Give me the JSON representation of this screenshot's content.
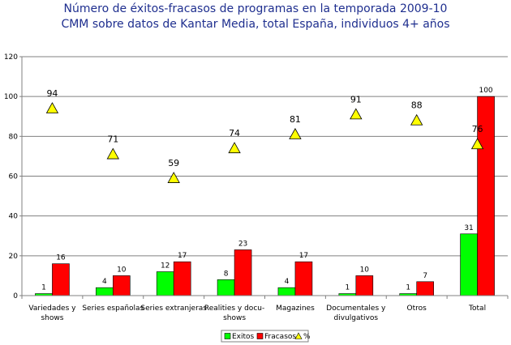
{
  "header": {
    "title": "Número de éxitos-fracasos de programas en la temporada 2009-10",
    "subtitle": "CMM sobre datos de Kantar Media, total España, individuos 4+ años"
  },
  "colors": {
    "exitos": "#00ff00",
    "fracasos": "#ff0000",
    "pct": "#ffff00",
    "title": "#1f2f8f"
  },
  "chart_data": {
    "type": "bar",
    "title": "Número de éxitos-fracasos de programas en la temporada 2009-10",
    "subtitle": "CMM sobre datos de Kantar Media, total España, individuos 4+ años",
    "categories": [
      [
        "Variedades y",
        "shows"
      ],
      [
        "Series españolas"
      ],
      [
        "Series extranjeras"
      ],
      [
        "Realities y docu-",
        "shows"
      ],
      [
        "Magazines"
      ],
      [
        "Documentales y",
        "divulgativos"
      ],
      [
        "Otros"
      ],
      [
        "Total"
      ]
    ],
    "series": [
      {
        "name": "Exitos",
        "type": "bar",
        "values": [
          1,
          4,
          12,
          8,
          4,
          1,
          1,
          31
        ]
      },
      {
        "name": "Fracasos",
        "type": "bar",
        "values": [
          16,
          10,
          17,
          23,
          17,
          10,
          7,
          100
        ]
      },
      {
        "name": "%",
        "type": "marker",
        "marker": "triangle",
        "values": [
          94,
          71,
          59,
          74,
          81,
          91,
          88,
          76
        ]
      }
    ],
    "yticks": [
      "0",
      "20",
      "40",
      "60",
      "80",
      "100",
      "120"
    ],
    "ylim": [
      0,
      120
    ],
    "grid": true,
    "legend": "bottom"
  }
}
